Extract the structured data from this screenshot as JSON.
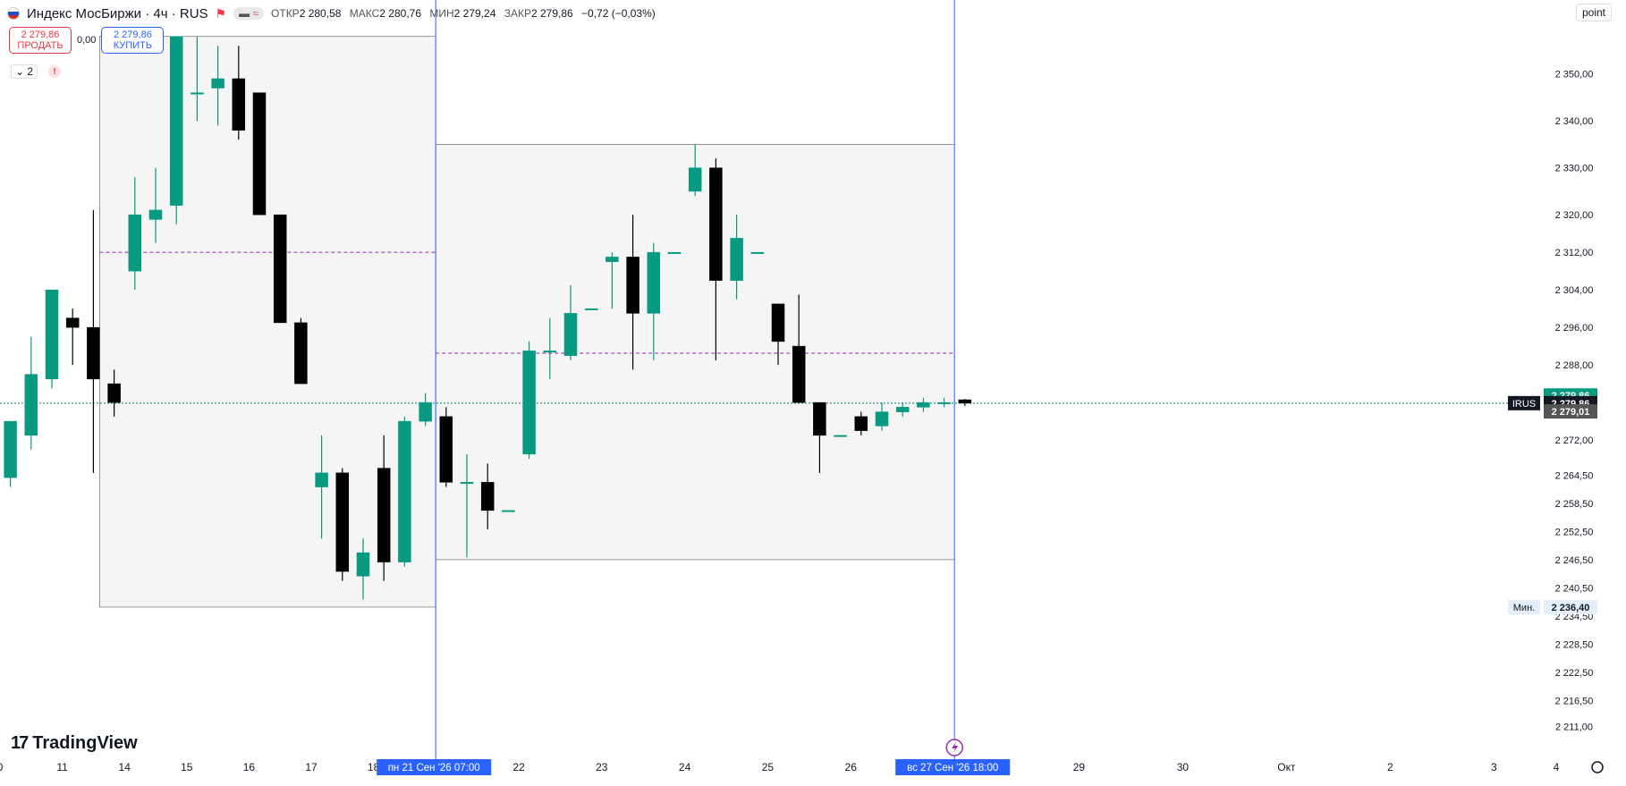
{
  "header": {
    "symbol": "Индекс МосБиржи · 4ч · RUS",
    "pill_icon": "wave-icon",
    "ohlc": [
      {
        "label": "ОТКР",
        "value": "2 280,58"
      },
      {
        "label": "МАКС",
        "value": "2 280,76"
      },
      {
        "label": "МИН",
        "value": "2 279,24"
      },
      {
        "label": "ЗАКР",
        "value": "2 279,86"
      },
      {
        "label": "",
        "value": "−0,72 (−0,03%)"
      }
    ]
  },
  "trade": {
    "sell_price": "2 279,86",
    "sell_label": "ПРОДАТЬ",
    "spread": "0,00",
    "buy_price": "2 279,86",
    "buy_label": "КУПИТЬ"
  },
  "indicators": {
    "count": "2",
    "warning": "!"
  },
  "scale_button": "point",
  "logo_text": "TradingView",
  "chart_data": {
    "type": "candlestick",
    "y_ticks": [
      "2 350,00",
      "2 340,00",
      "2 330,00",
      "2 320,00",
      "2 312,00",
      "2 304,00",
      "2 296,00",
      "2 288,00",
      "2 272,00",
      "2 264,50",
      "2 258,50",
      "2 252,50",
      "2 246,50",
      "2 240,50",
      "2 234,50",
      "2 228,50",
      "2 222,50",
      "2 216,50",
      "2 211,00"
    ],
    "ylim": [
      2208,
      2357
    ],
    "x_labels": [
      {
        "slot": 0,
        "text": "0"
      },
      {
        "slot": 3,
        "text": "11"
      },
      {
        "slot": 6,
        "text": "14"
      },
      {
        "slot": 9,
        "text": "15"
      },
      {
        "slot": 12,
        "text": "16"
      },
      {
        "slot": 15,
        "text": "17"
      },
      {
        "slot": 18,
        "text": "18"
      },
      {
        "slot": 25,
        "text": "22"
      },
      {
        "slot": 29,
        "text": "23"
      },
      {
        "slot": 33,
        "text": "24"
      },
      {
        "slot": 37,
        "text": "25"
      },
      {
        "slot": 41,
        "text": "26"
      },
      {
        "slot": 52,
        "text": "29"
      },
      {
        "slot": 57,
        "text": "30"
      },
      {
        "slot": 62,
        "text": "Окт"
      },
      {
        "slot": 67,
        "text": "2"
      },
      {
        "slot": 72,
        "text": "3"
      },
      {
        "slot": 75,
        "text": "4"
      }
    ],
    "time_markers": [
      {
        "slot": 21,
        "text": "пн 21 Сен '26   07:00"
      },
      {
        "slot": 46,
        "text": "вс 27 Сен '26   18:00"
      }
    ],
    "candles": [
      {
        "o": 2264,
        "h": 2276,
        "l": 2262,
        "c": 2276
      },
      {
        "o": 2273,
        "h": 2294,
        "l": 2270,
        "c": 2286
      },
      {
        "o": 2285,
        "h": 2303,
        "l": 2283,
        "c": 2304
      },
      {
        "o": 2298,
        "h": 2300,
        "l": 2288,
        "c": 2296
      },
      {
        "o": 2296,
        "h": 2321,
        "l": 2265,
        "c": 2285
      },
      {
        "o": 2284,
        "h": 2287,
        "l": 2277,
        "c": 2280
      },
      {
        "o": 2308,
        "h": 2328,
        "l": 2304,
        "c": 2320
      },
      {
        "o": 2319,
        "h": 2330,
        "l": 2314,
        "c": 2321
      },
      {
        "o": 2322,
        "h": 2358,
        "l": 2318,
        "c": 2358
      },
      {
        "o": 2346,
        "h": 2358,
        "l": 2340,
        "c": 2346
      },
      {
        "o": 2347,
        "h": 2356,
        "l": 2339,
        "c": 2349
      },
      {
        "o": 2349,
        "h": 2356,
        "l": 2336,
        "c": 2338
      },
      {
        "o": 2346,
        "h": 2346,
        "l": 2320,
        "c": 2320
      },
      {
        "o": 2320,
        "h": 2320,
        "l": 2297,
        "c": 2297
      },
      {
        "o": 2297,
        "h": 2298,
        "l": 2284,
        "c": 2284
      },
      {
        "o": 2262,
        "h": 2273,
        "l": 2251,
        "c": 2265
      },
      {
        "o": 2265,
        "h": 2266,
        "l": 2242,
        "c": 2244
      },
      {
        "o": 2243,
        "h": 2251,
        "l": 2238,
        "c": 2248
      },
      {
        "o": 2266,
        "h": 2273,
        "l": 2242,
        "c": 2246
      },
      {
        "o": 2246,
        "h": 2277,
        "l": 2245,
        "c": 2276
      },
      {
        "o": 2276,
        "h": 2282,
        "l": 2275,
        "c": 2280
      },
      {
        "o": 2277,
        "h": 2279,
        "l": 2262,
        "c": 2263
      },
      {
        "o": 2263,
        "h": 2269,
        "l": 2247,
        "c": 2263
      },
      {
        "o": 2263,
        "h": 2267,
        "l": 2253,
        "c": 2257
      },
      {
        "o": 2257,
        "h": 2257,
        "l": 2257,
        "c": 2257
      },
      {
        "o": 2269,
        "h": 2293,
        "l": 2268,
        "c": 2291
      },
      {
        "o": 2291,
        "h": 2298,
        "l": 2285,
        "c": 2291
      },
      {
        "o": 2290,
        "h": 2305,
        "l": 2289,
        "c": 2299
      },
      {
        "o": 2300,
        "h": 2300,
        "l": 2300,
        "c": 2300
      },
      {
        "o": 2310,
        "h": 2312,
        "l": 2300,
        "c": 2311
      },
      {
        "o": 2311,
        "h": 2320,
        "l": 2287,
        "c": 2299
      },
      {
        "o": 2299,
        "h": 2314,
        "l": 2289,
        "c": 2312
      },
      {
        "o": 2312,
        "h": 2312,
        "l": 2312,
        "c": 2312
      },
      {
        "o": 2325,
        "h": 2335,
        "l": 2324,
        "c": 2330
      },
      {
        "o": 2330,
        "h": 2332,
        "l": 2289,
        "c": 2306
      },
      {
        "o": 2306,
        "h": 2320,
        "l": 2302,
        "c": 2315
      },
      {
        "o": 2312,
        "h": 2312,
        "l": 2312,
        "c": 2312
      },
      {
        "o": 2301,
        "h": 2301,
        "l": 2288,
        "c": 2293
      },
      {
        "o": 2292,
        "h": 2303,
        "l": 2280,
        "c": 2280
      },
      {
        "o": 2280,
        "h": 2280,
        "l": 2265,
        "c": 2273
      },
      {
        "o": 2273,
        "h": 2273,
        "l": 2273,
        "c": 2273
      },
      {
        "o": 2277,
        "h": 2278,
        "l": 2273,
        "c": 2274
      },
      {
        "o": 2275,
        "h": 2280,
        "l": 2274,
        "c": 2278
      },
      {
        "o": 2278,
        "h": 2280,
        "l": 2277,
        "c": 2279
      },
      {
        "o": 2279,
        "h": 2281,
        "l": 2278,
        "c": 2280
      },
      {
        "o": 2280,
        "h": 2281,
        "l": 2279,
        "c": 2280
      },
      {
        "o": 2280.58,
        "h": 2280.76,
        "l": 2279.24,
        "c": 2279.86
      }
    ],
    "ranges": [
      {
        "from_slot": 4.8,
        "to_slot": 21,
        "high": 2358,
        "low": 2236.4,
        "mid": 2312
      },
      {
        "from_slot": 21,
        "to_slot": 46,
        "high": 2335,
        "low": 2246.5,
        "mid": 2290.5
      }
    ],
    "price_line": 2279.86,
    "labels": [
      {
        "price": 2281.5,
        "text": "2 279,86",
        "color": "#089981",
        "fg": "#ffffff"
      },
      {
        "price": 2279.86,
        "text": "2 279,86",
        "tag": "IRUS",
        "color": "#131722",
        "fg": "#ffffff"
      },
      {
        "price": 2278.1,
        "text": "2 279,01",
        "color": "#555555",
        "fg": "#ffffff"
      },
      {
        "price": 2236.4,
        "text": "2 236,40",
        "tag": "Мин.",
        "color": "#e3effd",
        "fg": "#131722"
      }
    ],
    "colors": {
      "up": "#089981",
      "down": "#000000",
      "range_fill": "#f5f5f5",
      "midline": "#9c27b0",
      "cursor": "#2962ff"
    }
  }
}
